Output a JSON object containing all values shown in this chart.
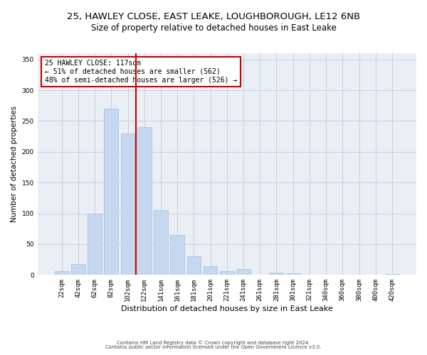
{
  "title": "25, HAWLEY CLOSE, EAST LEAKE, LOUGHBOROUGH, LE12 6NB",
  "subtitle": "Size of property relative to detached houses in East Leake",
  "xlabel": "Distribution of detached houses by size in East Leake",
  "ylabel": "Number of detached properties",
  "bar_labels": [
    "22sqm",
    "42sqm",
    "62sqm",
    "82sqm",
    "102sqm",
    "122sqm",
    "141sqm",
    "161sqm",
    "181sqm",
    "201sqm",
    "221sqm",
    "241sqm",
    "261sqm",
    "281sqm",
    "301sqm",
    "321sqm",
    "340sqm",
    "360sqm",
    "380sqm",
    "400sqm",
    "420sqm"
  ],
  "bar_values": [
    6,
    18,
    100,
    270,
    230,
    240,
    105,
    65,
    30,
    14,
    6,
    10,
    0,
    4,
    3,
    0,
    0,
    0,
    0,
    0,
    2
  ],
  "bar_color": "#c5d8f0",
  "bar_edge_color": "#a0bcd8",
  "vline_color": "#cc0000",
  "vline_pos": 4.5,
  "annotation_text": "25 HAWLEY CLOSE: 117sqm\n← 51% of detached houses are smaller (562)\n48% of semi-detached houses are larger (526) →",
  "ylim": [
    0,
    360
  ],
  "yticks": [
    0,
    50,
    100,
    150,
    200,
    250,
    300,
    350
  ],
  "grid_color": "#c8d0dc",
  "background_color": "#eaeff6",
  "footer_line1": "Contains HM Land Registry data © Crown copyright and database right 2024.",
  "footer_line2": "Contains public sector information licensed under the Open Government Licence v3.0.",
  "title_fontsize": 9.5,
  "subtitle_fontsize": 8.5,
  "xlabel_fontsize": 8,
  "ylabel_fontsize": 7.5,
  "tick_fontsize": 6.5,
  "annot_fontsize": 7,
  "footer_fontsize": 5
}
